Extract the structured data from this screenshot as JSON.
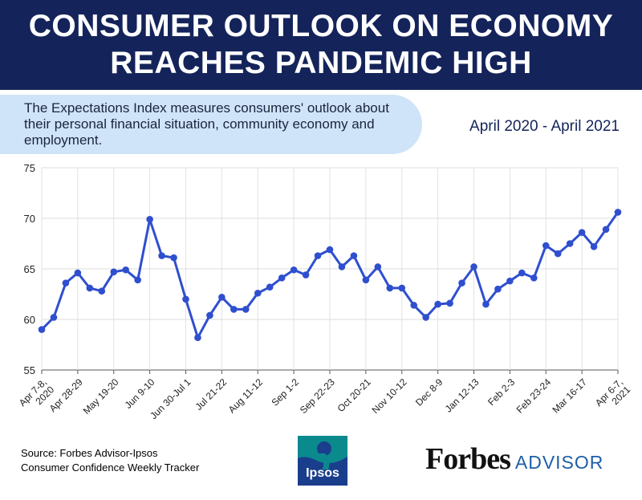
{
  "header": {
    "title_line1": "CONSUMER OUTLOOK ON ECONOMY",
    "title_line2": "REACHES PANDEMIC HIGH"
  },
  "callout": {
    "text": "The Expectations Index measures consumers' outlook about their personal financial situation, community economy and employment."
  },
  "date_range": "April 2020 - April 2021",
  "footer": {
    "source_line1": "Source: Forbes Advisor-Ipsos",
    "source_line2": "Consumer Confidence Weekly Tracker",
    "ipsos_logo_text": "Ipsos",
    "brand_forbes": "Forbes",
    "brand_advisor": "ADVISOR"
  },
  "colors": {
    "banner": "#14245a",
    "callout_bg": "#cfe4f8",
    "line": "#2f4fcf",
    "ipsos_teal": "#0b8a8e",
    "ipsos_blue": "#1a3e8c",
    "advisor_blue": "#1d5fa8"
  },
  "chart_data": {
    "type": "line",
    "title": "",
    "xlabel": "",
    "ylabel": "",
    "ylim": [
      55,
      75
    ],
    "yticks": [
      55,
      60,
      65,
      70,
      75
    ],
    "grid": true,
    "legend": "none",
    "x_tick_labels": [
      [
        "Apr 7-8,",
        "2020"
      ],
      [
        "Apr 28-29"
      ],
      [
        "May 19-20"
      ],
      [
        "Jun 9-10"
      ],
      [
        "Jun 30-Jul 1"
      ],
      [
        "Jul 21-22"
      ],
      [
        "Aug 11-12"
      ],
      [
        "Sep 1-2"
      ],
      [
        "Sep 22-23"
      ],
      [
        "Oct 20-21"
      ],
      [
        "Nov 10-12"
      ],
      [
        "Dec 8-9"
      ],
      [
        "Jan 12-13"
      ],
      [
        "Feb 2-3"
      ],
      [
        "Feb 23-24"
      ],
      [
        "Mar 16-17"
      ],
      [
        "Apr 6-7,",
        "2021"
      ]
    ],
    "series": [
      {
        "values": [
          59.0,
          60.2,
          63.6,
          64.6,
          63.1,
          62.8,
          64.7,
          64.9,
          63.9,
          69.9,
          66.3,
          66.1,
          62.0,
          58.2,
          60.4,
          62.2,
          61.0,
          61.0,
          62.6,
          63.2,
          64.1,
          64.9,
          64.4,
          66.3,
          66.9,
          65.2,
          66.3,
          63.9,
          65.2,
          63.1,
          63.1,
          61.4,
          60.2,
          61.5,
          61.6,
          63.6,
          65.2,
          61.5,
          63.0,
          63.8,
          64.6,
          64.1,
          67.3,
          66.5,
          67.5,
          68.6,
          67.2,
          68.9,
          70.6
        ]
      }
    ]
  }
}
